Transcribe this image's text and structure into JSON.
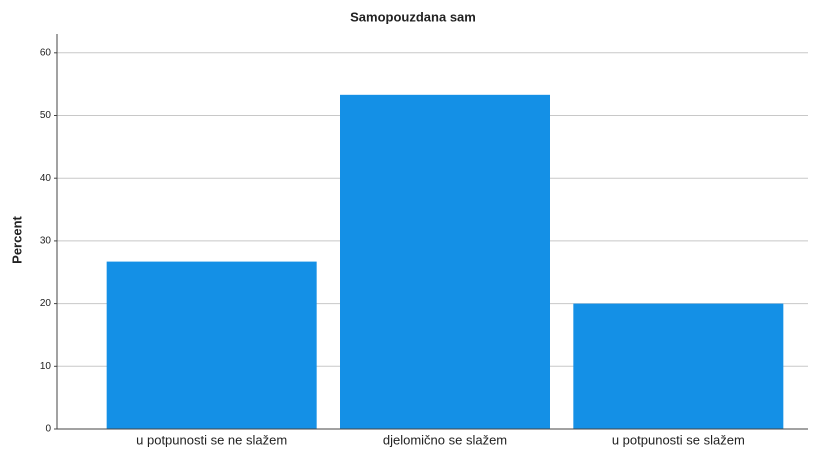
{
  "chart_data": {
    "type": "bar",
    "title": "Samopouzdana sam",
    "y_label": "Percent",
    "categories": [
      "u potpunosti se ne slažem",
      "djelomično se slažem",
      "u potpunosti se slažem"
    ],
    "values": [
      26.7,
      53.3,
      20.0
    ],
    "color": "#1490e6",
    "ylim": [
      0,
      63
    ],
    "yticks": [
      0,
      10,
      20,
      30,
      40,
      50,
      60
    ],
    "grid": true
  }
}
